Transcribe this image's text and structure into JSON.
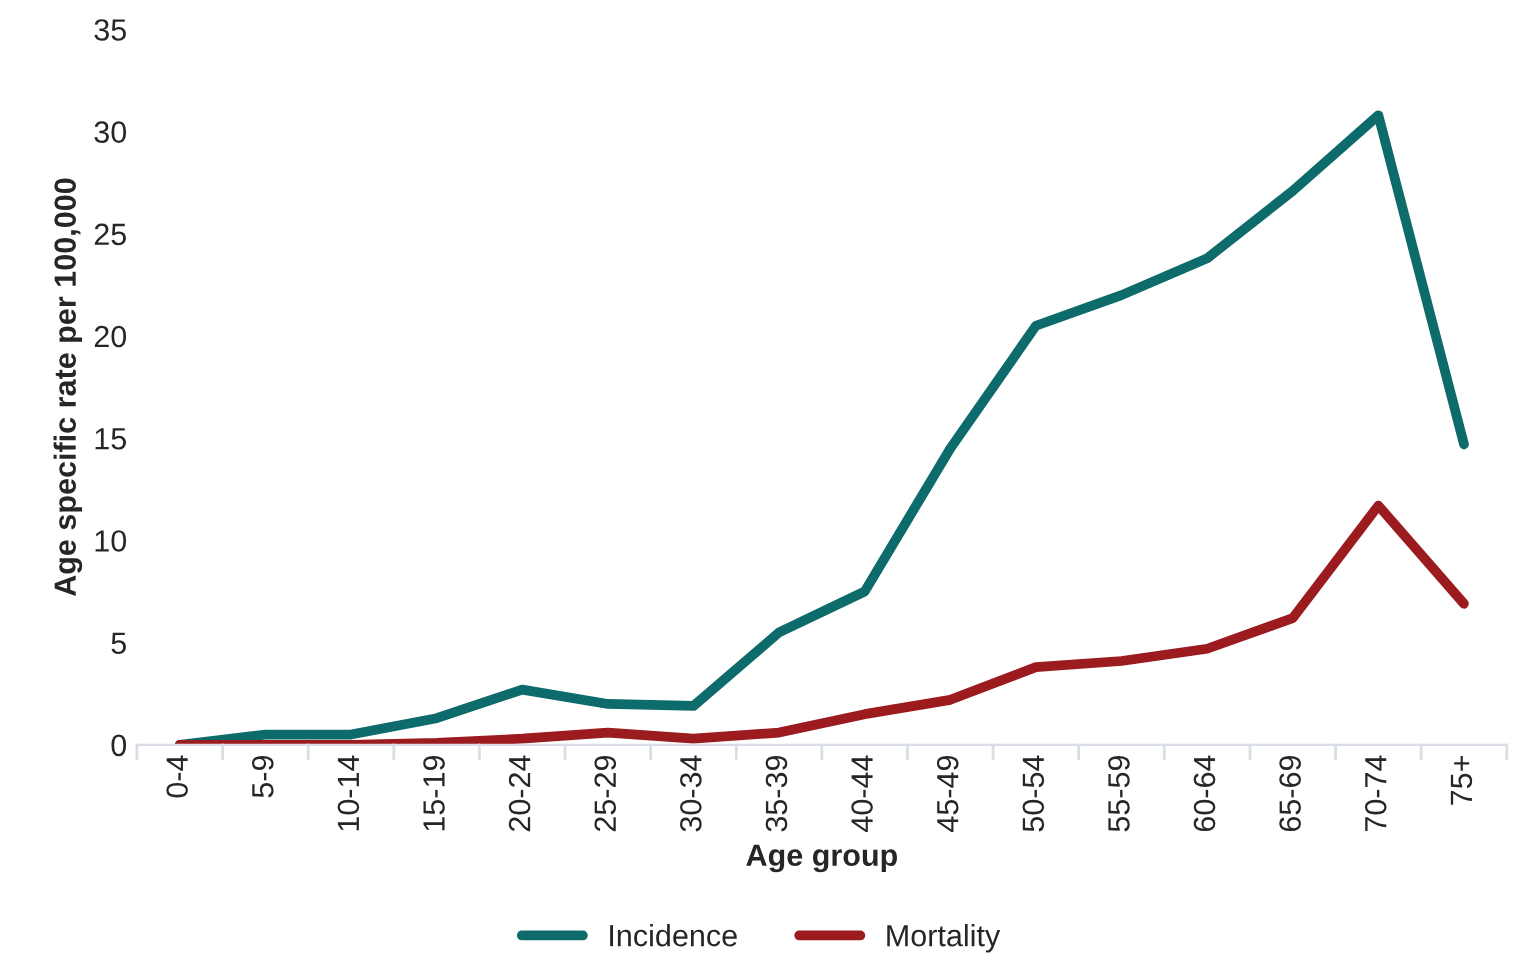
{
  "chart_data": {
    "type": "line",
    "xlabel": "Age group",
    "ylabel": "Age specific rate per 100,000",
    "categories": [
      "0-4",
      "5-9",
      "10-14",
      "15-19",
      "20-24",
      "25-29",
      "30-34",
      "35-39",
      "40-44",
      "45-49",
      "50-54",
      "55-59",
      "60-64",
      "65-69",
      "70-74",
      "75+"
    ],
    "series": [
      {
        "name": "Incidence",
        "color": "#0e6b6b",
        "values": [
          0,
          0.5,
          0.5,
          1.3,
          2.7,
          2.0,
          1.9,
          5.5,
          7.5,
          14.5,
          20.5,
          22,
          23.8,
          27.1,
          30.8,
          14.7
        ]
      },
      {
        "name": "Mortality",
        "color": "#9b1b1f",
        "values": [
          0,
          0,
          0,
          0.1,
          0.3,
          0.6,
          0.3,
          0.6,
          1.5,
          2.2,
          3.8,
          4.1,
          4.7,
          6.2,
          11.7,
          6.9
        ]
      }
    ],
    "ylim": [
      0,
      35
    ],
    "yticks": [
      0,
      5,
      10,
      15,
      20,
      25,
      30,
      35
    ],
    "grid": false,
    "legend": "bottom",
    "marker": "none",
    "line_style": "solid"
  }
}
